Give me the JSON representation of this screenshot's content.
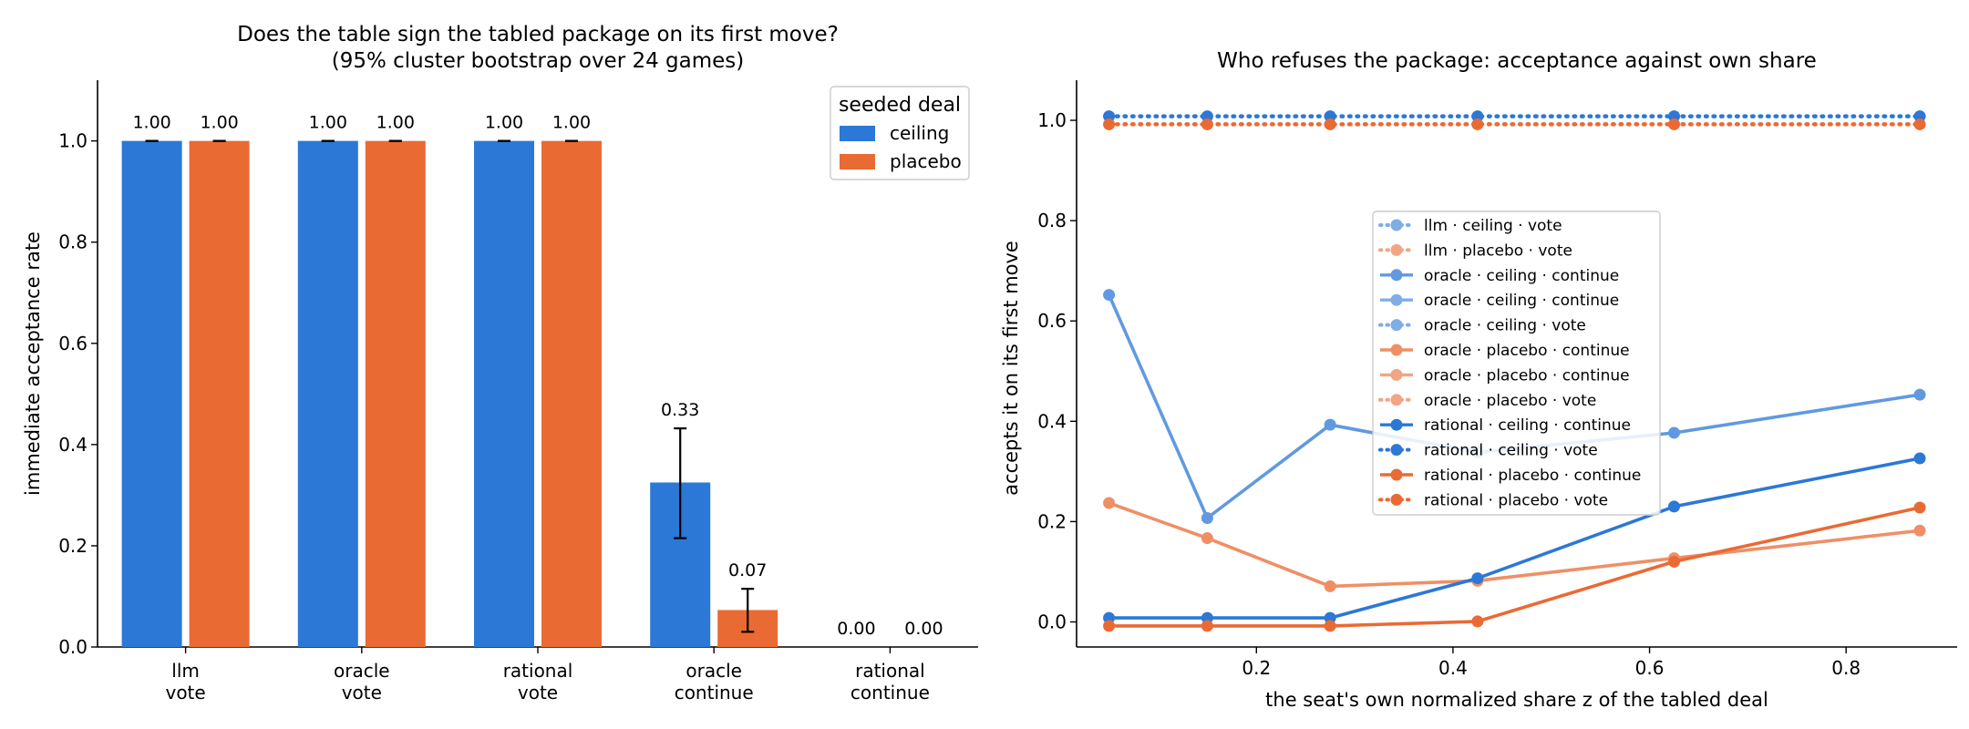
{
  "chart_data": [
    {
      "type": "bar",
      "title": [
        "Does the table sign the tabled package on its first move?",
        "(95% cluster bootstrap over 24 games)"
      ],
      "xlabel": "",
      "ylabel": "immediate acceptance rate",
      "ylim": [
        0,
        1.12
      ],
      "yticks": [
        "0.0",
        "0.2",
        "0.4",
        "0.6",
        "0.8",
        "1.0"
      ],
      "categories": [
        [
          "llm",
          "vote"
        ],
        [
          "oracle",
          "vote"
        ],
        [
          "rational",
          "vote"
        ],
        [
          "oracle",
          "continue"
        ],
        [
          "rational",
          "continue"
        ]
      ],
      "legend": {
        "title": "seeded deal",
        "placement": "top-right"
      },
      "series": [
        {
          "name": "ceiling",
          "color": "#2b78d6",
          "values": [
            1.0,
            1.0,
            1.0,
            0.325,
            0.0
          ],
          "labels": [
            "1.00",
            "1.00",
            "1.00",
            "0.33",
            "0.00"
          ],
          "ci": [
            [
              1.0,
              1.0
            ],
            [
              1.0,
              1.0
            ],
            [
              1.0,
              1.0
            ],
            [
              0.215,
              0.432
            ],
            null
          ]
        },
        {
          "name": "placebo",
          "color": "#ea6a34",
          "values": [
            1.0,
            1.0,
            1.0,
            0.073,
            0.0
          ],
          "labels": [
            "1.00",
            "1.00",
            "1.00",
            "0.07",
            "0.00"
          ],
          "ci": [
            [
              1.0,
              1.0
            ],
            [
              1.0,
              1.0
            ],
            [
              1.0,
              1.0
            ],
            [
              0.03,
              0.115
            ],
            null
          ]
        }
      ]
    },
    {
      "type": "line",
      "title": "Who refuses the package: acceptance against own share",
      "xlabel": "the seat's own normalized share z of the tabled deal",
      "ylabel": "accepts it on its first move",
      "xlim": [
        0.017,
        0.913
      ],
      "ylim": [
        -0.05,
        1.08
      ],
      "xticks": [
        "0.2",
        "0.4",
        "0.6",
        "0.8"
      ],
      "yticks": [
        "0.0",
        "0.2",
        "0.4",
        "0.6",
        "0.8",
        "1.0"
      ],
      "legend": {
        "placement": "center"
      },
      "series": [
        {
          "name": "llm · ceiling · vote",
          "color": "#2b78d6",
          "style": "dotted",
          "alpha": 0.6,
          "x": [],
          "y": []
        },
        {
          "name": "llm · placebo · vote",
          "color": "#ea6a34",
          "style": "dotted",
          "alpha": 0.6,
          "x": [],
          "y": []
        },
        {
          "name": "oracle · ceiling · continue",
          "color": "#2b78d6",
          "style": "solid",
          "alpha": 0.75,
          "x": [
            0.05,
            0.15,
            0.275,
            0.425,
            0.625,
            0.875
          ],
          "y": [
            0.652,
            0.207,
            0.393,
            0.338,
            0.377,
            0.453
          ]
        },
        {
          "name": "oracle · ceiling · continue",
          "color": "#2b78d6",
          "style": "solid",
          "alpha": 0.6,
          "x": [],
          "y": []
        },
        {
          "name": "oracle · ceiling · vote",
          "color": "#2b78d6",
          "style": "dotted",
          "alpha": 0.6,
          "x": [],
          "y": []
        },
        {
          "name": "oracle · placebo · continue",
          "color": "#ea6a34",
          "style": "solid",
          "alpha": 0.75,
          "x": [
            0.05,
            0.15,
            0.275,
            0.425,
            0.625,
            0.875
          ],
          "y": [
            0.237,
            0.167,
            0.071,
            0.082,
            0.127,
            0.182
          ]
        },
        {
          "name": "oracle · placebo · continue",
          "color": "#ea6a34",
          "style": "solid",
          "alpha": 0.6,
          "x": [],
          "y": []
        },
        {
          "name": "oracle · placebo · vote",
          "color": "#ea6a34",
          "style": "dotted",
          "alpha": 0.6,
          "x": [],
          "y": []
        },
        {
          "name": "rational · ceiling · continue",
          "color": "#2b78d6",
          "style": "solid",
          "alpha": 1.0,
          "x": [
            0.05,
            0.15,
            0.275,
            0.425,
            0.625,
            0.875
          ],
          "y": [
            0.008,
            0.008,
            0.008,
            0.087,
            0.23,
            0.326
          ]
        },
        {
          "name": "rational · ceiling · vote",
          "color": "#2b78d6",
          "style": "dotted",
          "alpha": 1.0,
          "x": [
            0.05,
            0.15,
            0.275,
            0.425,
            0.625,
            0.875
          ],
          "y": [
            1.008,
            1.008,
            1.008,
            1.008,
            1.008,
            1.008
          ]
        },
        {
          "name": "rational · placebo · continue",
          "color": "#ea6a34",
          "style": "solid",
          "alpha": 1.0,
          "x": [
            0.05,
            0.15,
            0.275,
            0.425,
            0.625,
            0.875
          ],
          "y": [
            -0.008,
            -0.008,
            -0.008,
            0.001,
            0.12,
            0.228
          ]
        },
        {
          "name": "rational · placebo · vote",
          "color": "#ea6a34",
          "style": "dotted",
          "alpha": 1.0,
          "x": [
            0.05,
            0.15,
            0.275,
            0.425,
            0.625,
            0.875
          ],
          "y": [
            0.992,
            0.992,
            0.992,
            0.992,
            0.992,
            0.992
          ]
        }
      ]
    }
  ]
}
